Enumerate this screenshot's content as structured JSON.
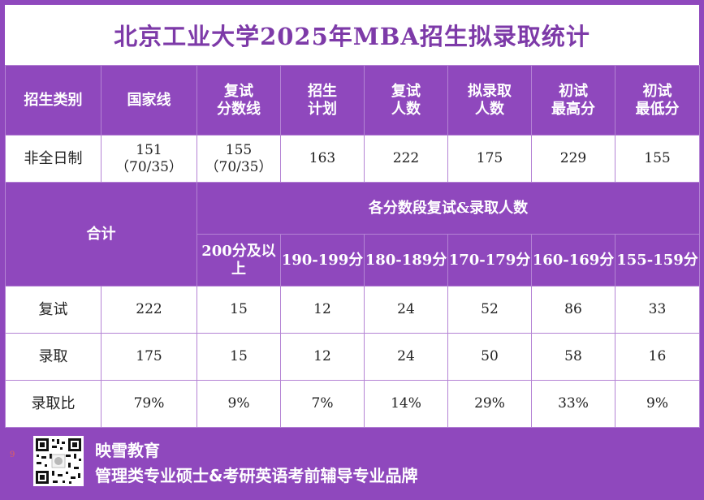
{
  "title": "北京工业大学2025年MBA招生拟录取统计",
  "headers": [
    "招生类别",
    "国家线",
    "复试\n分数线",
    "招生\n计划",
    "复试\n人数",
    "拟录取\n人数",
    "初试\n最高分",
    "初试\n最低分"
  ],
  "row1": {
    "category": "非全日制",
    "national_line": "151",
    "national_line_sub": "（70/35）",
    "retest_line": "155",
    "retest_line_sub": "（70/35）",
    "plan": "163",
    "retest_count": "222",
    "admit_count": "175",
    "max_score": "229",
    "min_score": "155"
  },
  "stats": {
    "total_label": "合计",
    "bands_title": "各分数段复试&录取人数",
    "bands": [
      "200分及以上",
      "190-199分",
      "180-189分",
      "170-179分",
      "160-169分",
      "155-159分"
    ],
    "rows": [
      {
        "label": "复试",
        "total": "222",
        "values": [
          "15",
          "12",
          "24",
          "52",
          "86",
          "33"
        ]
      },
      {
        "label": "录取",
        "total": "175",
        "values": [
          "15",
          "12",
          "24",
          "50",
          "58",
          "16"
        ]
      },
      {
        "label": "录取比",
        "total": "79%",
        "values": [
          "9%",
          "7%",
          "14%",
          "29%",
          "33%",
          "9%"
        ]
      }
    ]
  },
  "footer": {
    "brand": "映雪教育",
    "slogan": "管理类专业硕士&考研英语考前辅导专业品牌",
    "mark": "9"
  },
  "colors": {
    "purple": "#8f48bd",
    "title_text": "#7d3aa8",
    "white": "#ffffff"
  },
  "icons": [
    "qr-code-icon"
  ]
}
